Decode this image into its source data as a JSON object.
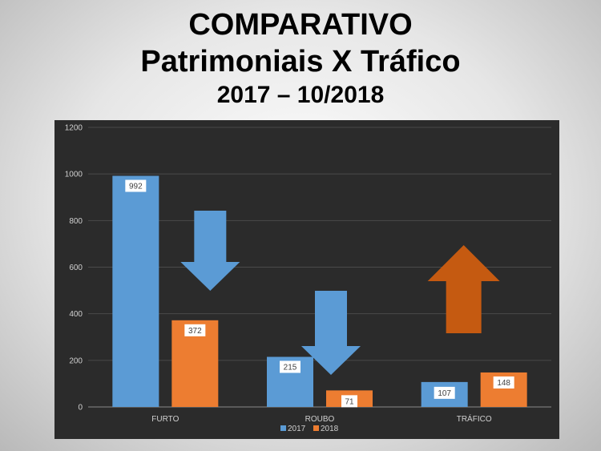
{
  "page": {
    "title": "COMPARATIVO",
    "subtitle": "Patrimoniais X Tráfico",
    "period": "2017 – 10/2018"
  },
  "colors": {
    "series_2017": "#5b9bd5",
    "series_2018": "#ed7d31",
    "arrow_down": "#5b9bd5",
    "arrow_up": "#c55a11",
    "plot_bg": "#2b2b2b"
  },
  "chart_data": {
    "type": "bar",
    "categories": [
      "FURTO",
      "ROUBO",
      "TRÁFICO"
    ],
    "series": [
      {
        "name": "2017",
        "values": [
          992,
          215,
          107
        ]
      },
      {
        "name": "2018",
        "values": [
          372,
          71,
          148
        ]
      }
    ],
    "ylim": [
      0,
      1200
    ],
    "yticks": [
      "0",
      "200",
      "400",
      "600",
      "800",
      "1000",
      "1200"
    ],
    "grid": true,
    "legend": "bottom-center",
    "annotations": [
      {
        "type": "arrow",
        "direction": "down",
        "category": "FURTO"
      },
      {
        "type": "arrow",
        "direction": "down",
        "category": "ROUBO"
      },
      {
        "type": "arrow",
        "direction": "up",
        "category": "TRÁFICO"
      }
    ]
  }
}
